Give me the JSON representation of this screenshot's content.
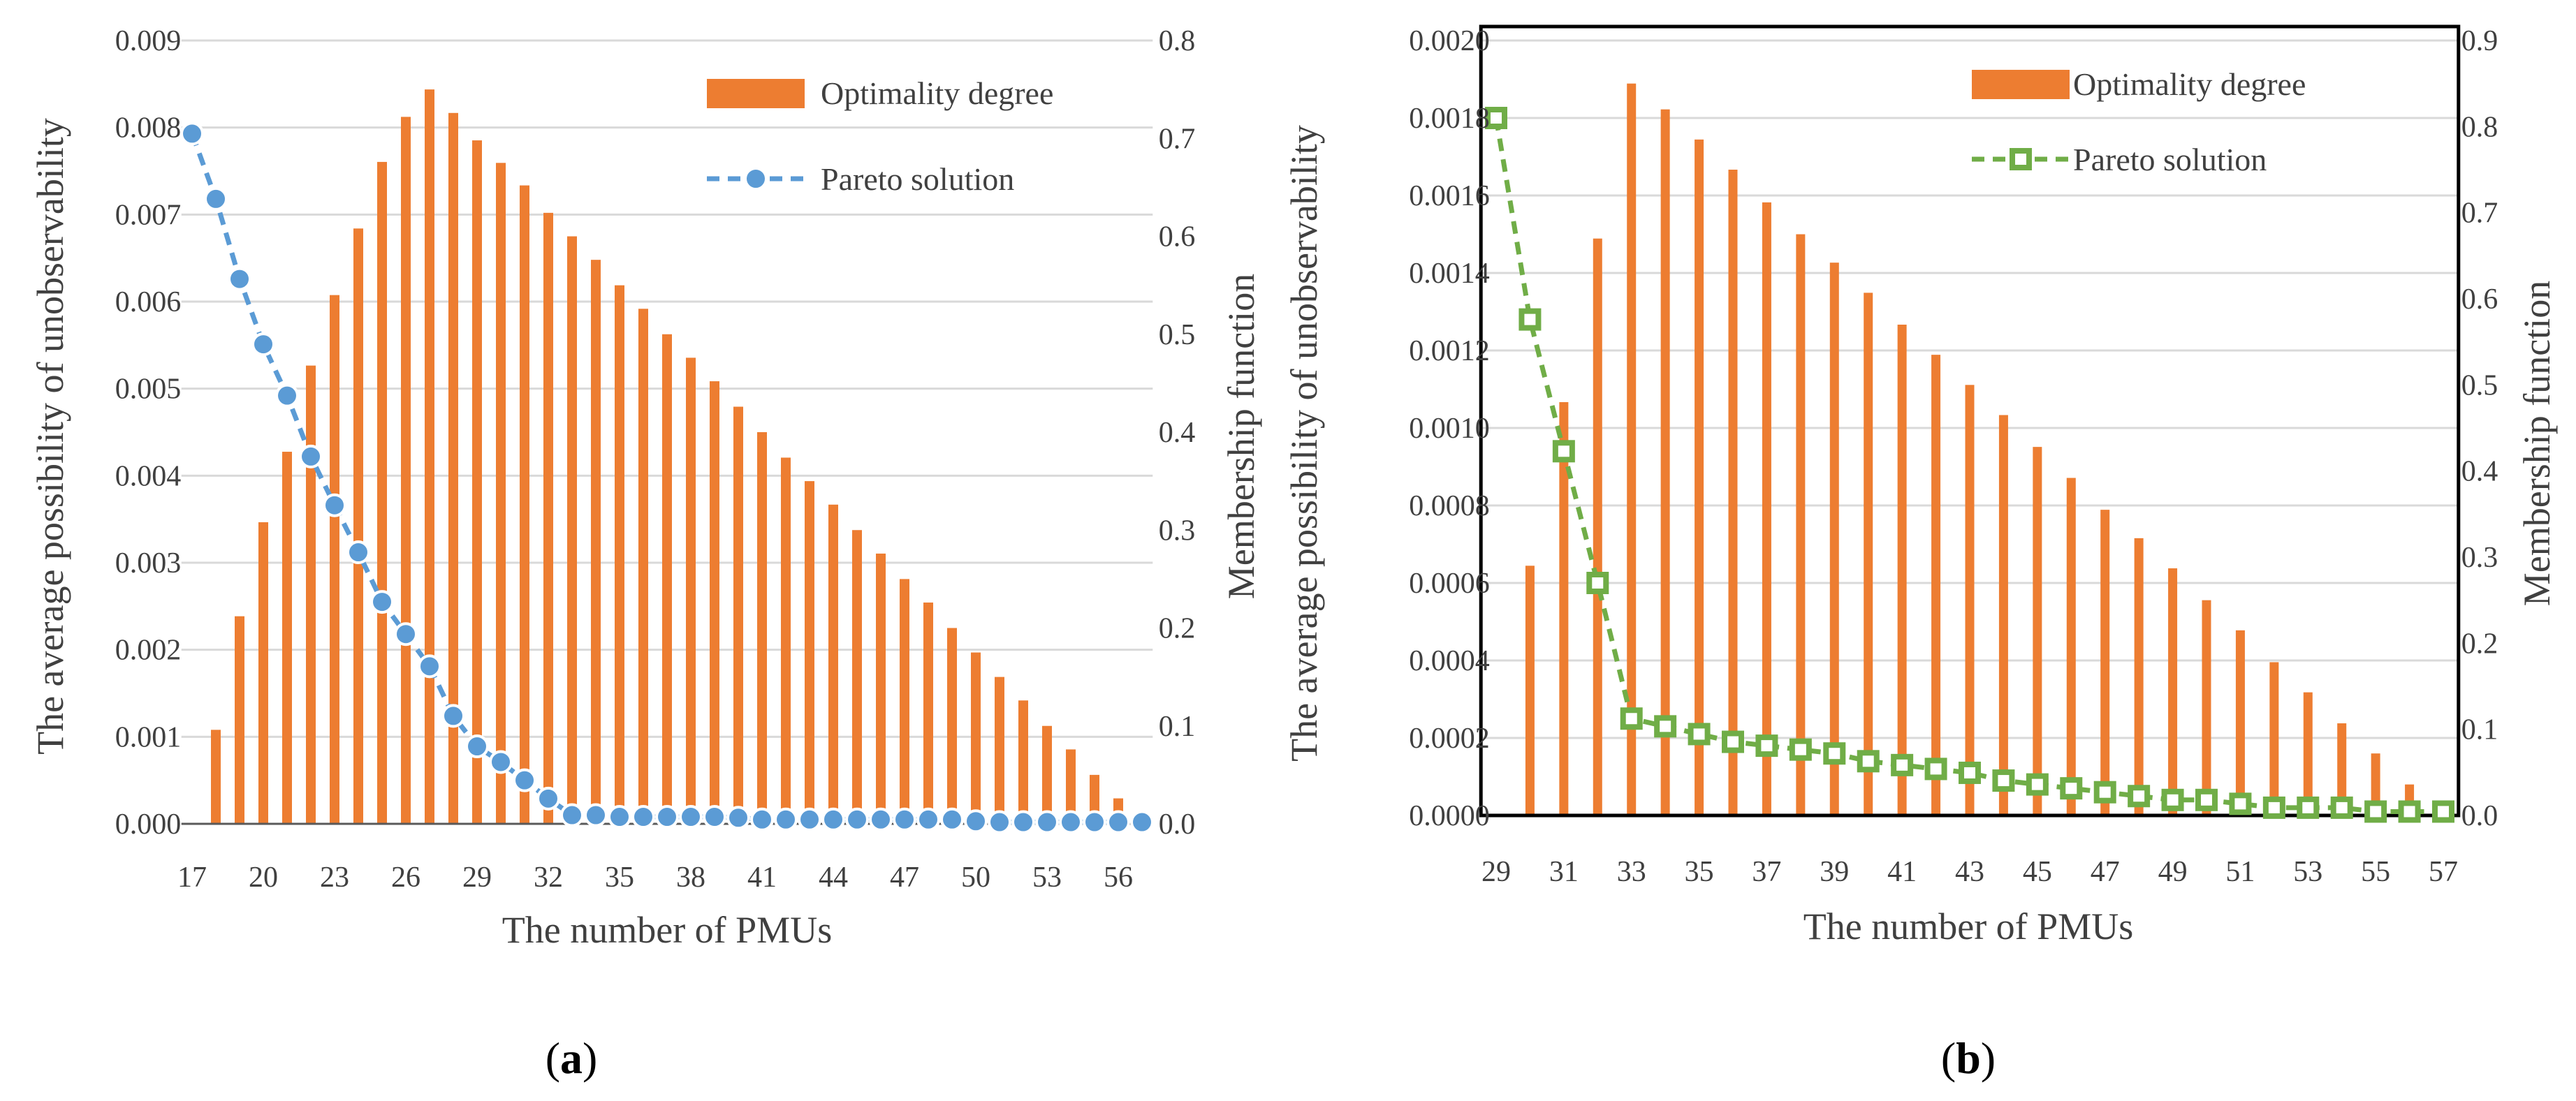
{
  "figure": {
    "panels": [
      {
        "caption_open": "(",
        "caption_letter": "a",
        "caption_close": ")"
      },
      {
        "caption_open": "(",
        "caption_letter": "b",
        "caption_close": ")"
      }
    ]
  },
  "chart_data": [
    {
      "type": "bar+line",
      "xlabel": "The number of PMUs",
      "ylabel_left": "The average possibility of unobservability",
      "ylabel_right": "Membership function",
      "x": [
        17,
        18,
        19,
        20,
        21,
        22,
        23,
        24,
        25,
        26,
        27,
        28,
        29,
        30,
        31,
        32,
        33,
        34,
        35,
        36,
        37,
        38,
        39,
        40,
        41,
        42,
        43,
        44,
        45,
        46,
        47,
        48,
        49,
        50,
        51,
        52,
        53,
        54,
        55,
        56,
        57
      ],
      "x_ticks": [
        "17",
        "20",
        "23",
        "26",
        "29",
        "32",
        "35",
        "38",
        "41",
        "44",
        "47",
        "50",
        "53",
        "56"
      ],
      "ylim_left": [
        0,
        0.009
      ],
      "yticks_left": [
        "0.000",
        "0.001",
        "0.002",
        "0.003",
        "0.004",
        "0.005",
        "0.006",
        "0.007",
        "0.008",
        "0.009"
      ],
      "ylim_right": [
        0,
        0.8
      ],
      "yticks_right": [
        "0.0",
        "0.1",
        "0.2",
        "0.3",
        "0.4",
        "0.5",
        "0.6",
        "0.7",
        "0.8"
      ],
      "series": [
        {
          "name": "Optimality degree",
          "kind": "bar",
          "axis": "right",
          "color": "#ed7d31",
          "values": [
            0.0,
            0.096,
            0.212,
            0.308,
            0.38,
            0.468,
            0.54,
            0.608,
            0.676,
            0.722,
            0.75,
            0.726,
            0.698,
            0.675,
            0.652,
            0.624,
            0.6,
            0.576,
            0.55,
            0.526,
            0.5,
            0.476,
            0.452,
            0.426,
            0.4,
            0.374,
            0.35,
            0.326,
            0.3,
            0.276,
            0.25,
            0.226,
            0.2,
            0.175,
            0.15,
            0.126,
            0.1,
            0.076,
            0.05,
            0.026,
            0.0
          ]
        },
        {
          "name": "Pareto solution",
          "kind": "line",
          "axis": "left",
          "color": "#5b9bd5",
          "marker": "circle",
          "line_style": "dashed",
          "values": [
            0.00793,
            0.00718,
            0.00626,
            0.00551,
            0.00492,
            0.00422,
            0.00366,
            0.00312,
            0.00255,
            0.00218,
            0.00181,
            0.00124,
            0.00089,
            0.00071,
            0.0005,
            0.00029,
            0.0001,
            0.0001,
            8e-05,
            8e-05,
            8e-05,
            8e-05,
            8e-05,
            7e-05,
            5e-05,
            5e-05,
            5e-05,
            5e-05,
            5e-05,
            5e-05,
            5e-05,
            5e-05,
            5e-05,
            3e-05,
            2e-05,
            2e-05,
            2e-05,
            2e-05,
            2e-05,
            2e-05,
            2e-05
          ]
        }
      ],
      "legend_position": "top-right"
    },
    {
      "type": "bar+line",
      "xlabel": "The number of PMUs",
      "ylabel_left": "The average possibility of unobservability",
      "ylabel_right": "Membership function",
      "x": [
        29,
        30,
        31,
        32,
        33,
        34,
        35,
        36,
        37,
        38,
        39,
        40,
        41,
        42,
        43,
        44,
        45,
        46,
        47,
        48,
        49,
        50,
        51,
        52,
        53,
        54,
        55,
        56,
        57
      ],
      "x_ticks": [
        "29",
        "31",
        "33",
        "35",
        "37",
        "39",
        "41",
        "43",
        "45",
        "47",
        "49",
        "51",
        "53",
        "55",
        "57"
      ],
      "ylim_left": [
        0,
        0.002
      ],
      "yticks_left": [
        "0.0000",
        "0.0002",
        "0.0004",
        "0.0006",
        "0.0008",
        "0.0010",
        "0.0012",
        "0.0014",
        "0.0016",
        "0.0018",
        "0.0020"
      ],
      "ylim_right": [
        0,
        0.9
      ],
      "yticks_right": [
        "0.0",
        "0.1",
        "0.2",
        "0.3",
        "0.4",
        "0.5",
        "0.6",
        "0.7",
        "0.8",
        "0.9"
      ],
      "series": [
        {
          "name": "Optimality degree",
          "kind": "bar",
          "axis": "right",
          "color": "#ed7d31",
          "values": [
            0.0,
            0.29,
            0.48,
            0.67,
            0.85,
            0.82,
            0.785,
            0.75,
            0.712,
            0.675,
            0.642,
            0.607,
            0.57,
            0.535,
            0.5,
            0.465,
            0.428,
            0.392,
            0.355,
            0.322,
            0.287,
            0.25,
            0.215,
            0.178,
            0.143,
            0.107,
            0.072,
            0.036,
            0.0
          ]
        },
        {
          "name": "Pareto solution",
          "kind": "line",
          "axis": "left",
          "color": "#70ad47",
          "marker": "square",
          "line_style": "dashed",
          "values": [
            0.0018,
            0.00128,
            0.00094,
            0.0006,
            0.00025,
            0.00023,
            0.00021,
            0.00019,
            0.00018,
            0.00017,
            0.00016,
            0.00014,
            0.00013,
            0.00012,
            0.00011,
            9e-05,
            8e-05,
            7e-05,
            6e-05,
            5e-05,
            4e-05,
            4e-05,
            3e-05,
            2e-05,
            2e-05,
            2e-05,
            1e-05,
            1e-05,
            1e-05
          ]
        }
      ],
      "legend_position": "top-right"
    }
  ]
}
